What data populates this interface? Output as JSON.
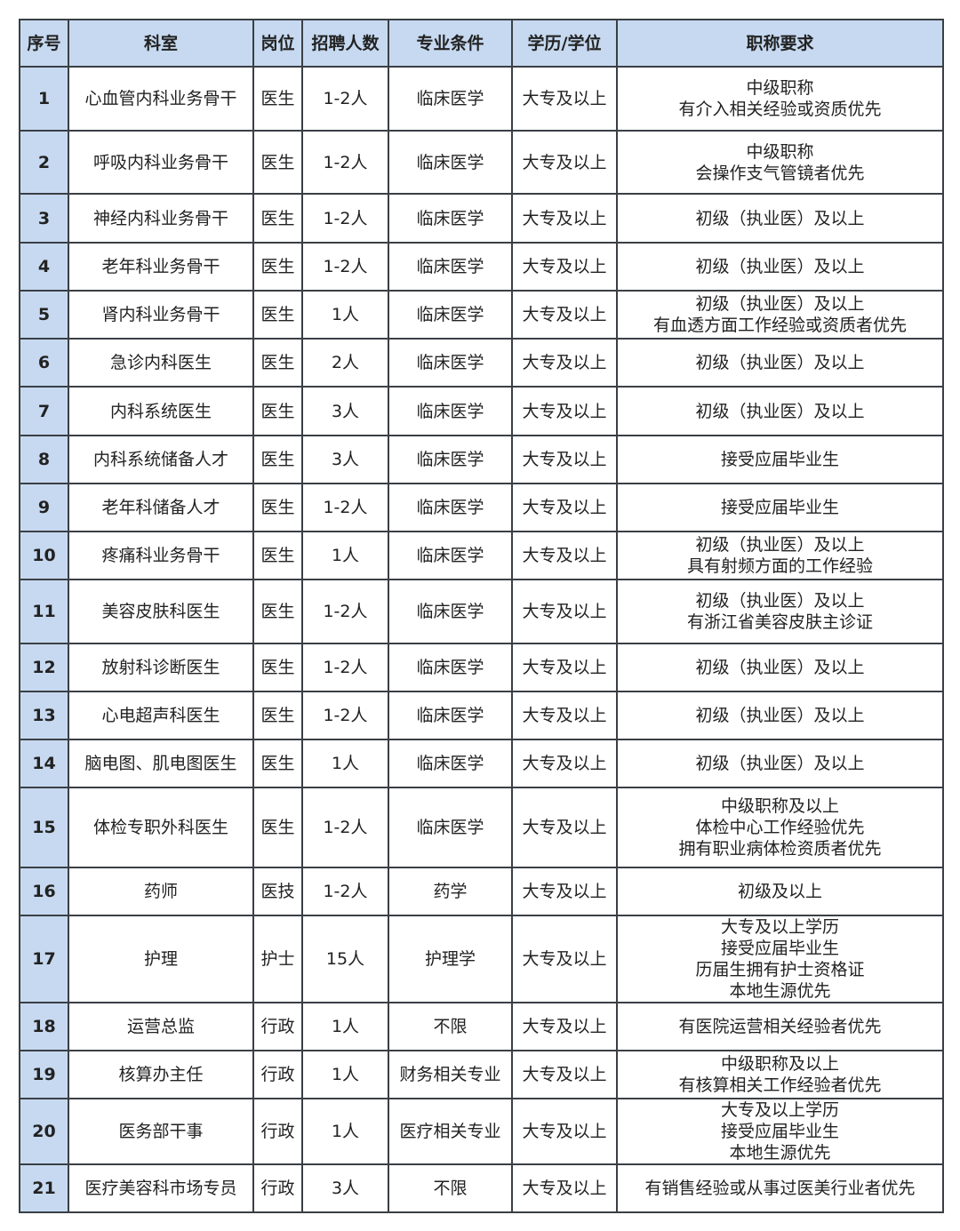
{
  "colors": {
    "header_bg": "#c6d9f0",
    "border": "#3a3f45"
  },
  "headers": [
    "序号",
    "科室",
    "岗位",
    "招聘人数",
    "专业条件",
    "学历/学位",
    "职称要求"
  ],
  "rows": [
    {
      "no": "1",
      "dept": "心血管内科业务骨干",
      "post": "医生",
      "count": "1-2人",
      "major": "临床医学",
      "edu": "大专及以上",
      "req": "中级职称\n有介入相关经验或资质优先"
    },
    {
      "no": "2",
      "dept": "呼吸内科业务骨干",
      "post": "医生",
      "count": "1-2人",
      "major": "临床医学",
      "edu": "大专及以上",
      "req": "中级职称\n会操作支气管镜者优先"
    },
    {
      "no": "3",
      "dept": "神经内科业务骨干",
      "post": "医生",
      "count": "1-2人",
      "major": "临床医学",
      "edu": "大专及以上",
      "req": "初级（执业医）及以上"
    },
    {
      "no": "4",
      "dept": "老年科业务骨干",
      "post": "医生",
      "count": "1-2人",
      "major": "临床医学",
      "edu": "大专及以上",
      "req": "初级（执业医）及以上"
    },
    {
      "no": "5",
      "dept": "肾内科业务骨干",
      "post": "医生",
      "count": "1人",
      "major": "临床医学",
      "edu": "大专及以上",
      "req": "初级（执业医）及以上\n有血透方面工作经验或资质者优先"
    },
    {
      "no": "6",
      "dept": "急诊内科医生",
      "post": "医生",
      "count": "2人",
      "major": "临床医学",
      "edu": "大专及以上",
      "req": "初级（执业医）及以上"
    },
    {
      "no": "7",
      "dept": "内科系统医生",
      "post": "医生",
      "count": "3人",
      "major": "临床医学",
      "edu": "大专及以上",
      "req": "初级（执业医）及以上"
    },
    {
      "no": "8",
      "dept": "内科系统储备人才",
      "post": "医生",
      "count": "3人",
      "major": "临床医学",
      "edu": "大专及以上",
      "req": "接受应届毕业生"
    },
    {
      "no": "9",
      "dept": "老年科储备人才",
      "post": "医生",
      "count": "1-2人",
      "major": "临床医学",
      "edu": "大专及以上",
      "req": "接受应届毕业生"
    },
    {
      "no": "10",
      "dept": "疼痛科业务骨干",
      "post": "医生",
      "count": "1人",
      "major": "临床医学",
      "edu": "大专及以上",
      "req": "初级（执业医）及以上\n具有射频方面的工作经验"
    },
    {
      "no": "11",
      "dept": "美容皮肤科医生",
      "post": "医生",
      "count": "1-2人",
      "major": "临床医学",
      "edu": "大专及以上",
      "req": "初级（执业医）及以上\n有浙江省美容皮肤主诊证"
    },
    {
      "no": "12",
      "dept": "放射科诊断医生",
      "post": "医生",
      "count": "1-2人",
      "major": "临床医学",
      "edu": "大专及以上",
      "req": "初级（执业医）及以上"
    },
    {
      "no": "13",
      "dept": "心电超声科医生",
      "post": "医生",
      "count": "1-2人",
      "major": "临床医学",
      "edu": "大专及以上",
      "req": "初级（执业医）及以上"
    },
    {
      "no": "14",
      "dept": "脑电图、肌电图医生",
      "post": "医生",
      "count": "1人",
      "major": "临床医学",
      "edu": "大专及以上",
      "req": "初级（执业医）及以上"
    },
    {
      "no": "15",
      "dept": "体检专职外科医生",
      "post": "医生",
      "count": "1-2人",
      "major": "临床医学",
      "edu": "大专及以上",
      "req": "中级职称及以上\n体检中心工作经验优先\n拥有职业病体检资质者优先"
    },
    {
      "no": "16",
      "dept": "药师",
      "post": "医技",
      "count": "1-2人",
      "major": "药学",
      "edu": "大专及以上",
      "req": "初级及以上"
    },
    {
      "no": "17",
      "dept": "护理",
      "post": "护士",
      "count": "15人",
      "major": "护理学",
      "edu": "大专及以上",
      "req": "大专及以上学历\n接受应届毕业生\n历届生拥有护士资格证\n本地生源优先"
    },
    {
      "no": "18",
      "dept": "运营总监",
      "post": "行政",
      "count": "1人",
      "major": "不限",
      "edu": "大专及以上",
      "req": "有医院运营相关经验者优先"
    },
    {
      "no": "19",
      "dept": "核算办主任",
      "post": "行政",
      "count": "1人",
      "major": "财务相关专业",
      "edu": "大专及以上",
      "req": "中级职称及以上\n有核算相关工作经验者优先"
    },
    {
      "no": "20",
      "dept": "医务部干事",
      "post": "行政",
      "count": "1人",
      "major": "医疗相关专业",
      "edu": "大专及以上",
      "req": "大专及以上学历\n接受应届毕业生\n本地生源优先"
    },
    {
      "no": "21",
      "dept": "医疗美容科市场专员",
      "post": "行政",
      "count": "3人",
      "major": "不限",
      "edu": "大专及以上",
      "req": "有销售经验或从事过医美行业者优先"
    }
  ]
}
